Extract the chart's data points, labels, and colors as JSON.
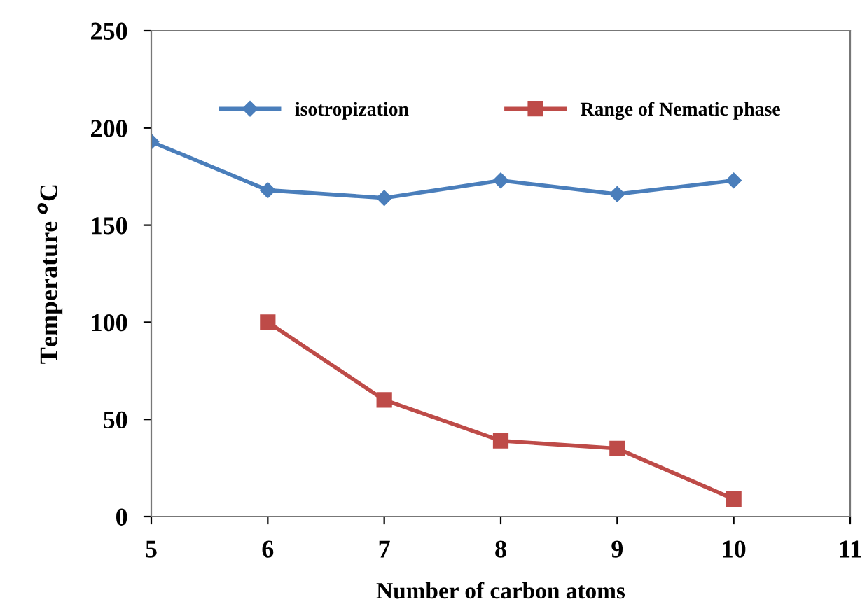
{
  "chart_data": {
    "type": "line",
    "xlabel": "Number of carbon atoms",
    "ylabel": "Temperature $^{o}$C",
    "x": [
      5,
      6,
      7,
      8,
      9,
      10
    ],
    "series": [
      {
        "name": "isotropization",
        "color": "#4a7ebb",
        "marker": "diamond",
        "values": [
          193,
          168,
          164,
          173,
          166,
          173
        ]
      },
      {
        "name": "Range of Nematic phase",
        "color": "#be4b48",
        "marker": "square",
        "values": [
          null,
          100,
          60,
          39,
          35,
          9
        ]
      }
    ],
    "xlim": [
      5,
      11
    ],
    "xticks": [
      5,
      6,
      7,
      8,
      9,
      10,
      11
    ],
    "ylim": [
      0,
      250
    ],
    "yticks": [
      0,
      50,
      100,
      150,
      200,
      250
    ],
    "grid": false,
    "legend": "top"
  }
}
